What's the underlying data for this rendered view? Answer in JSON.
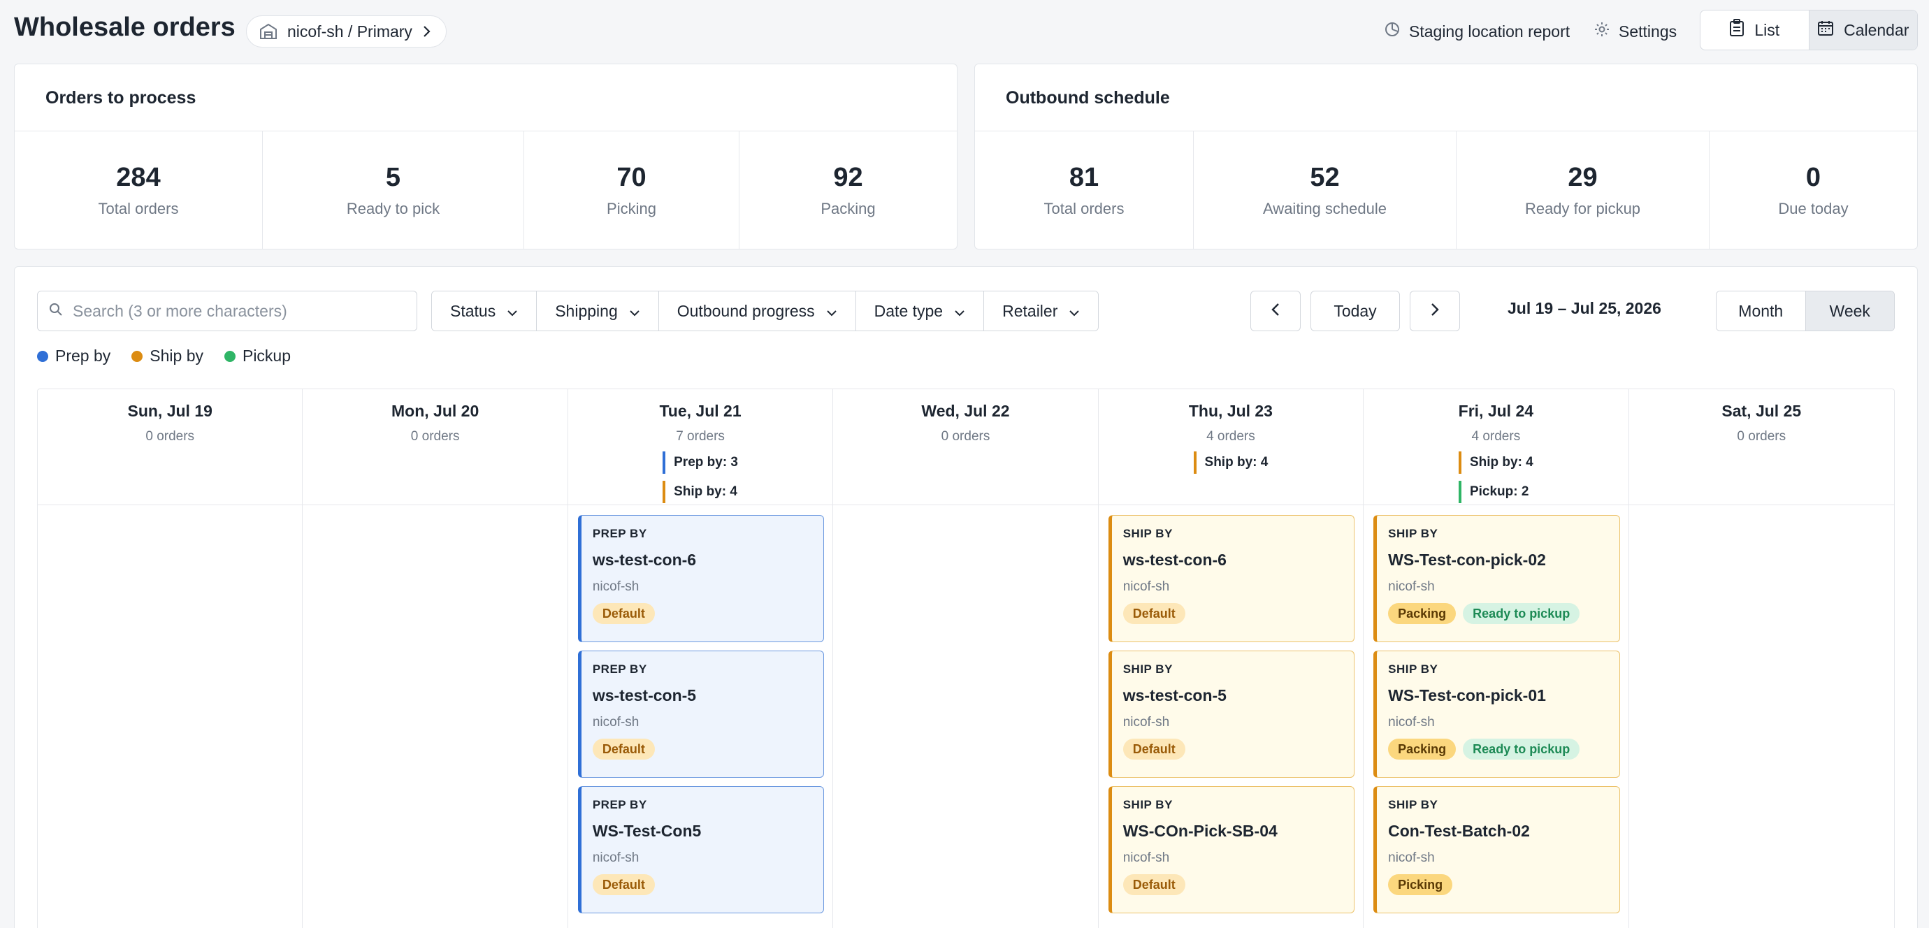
{
  "header": {
    "title": "Wholesale orders",
    "breadcrumb": "nicof-sh / Primary",
    "staging_report": "Staging location report",
    "settings": "Settings",
    "view_list": "List",
    "view_calendar": "Calendar",
    "active_view": "Calendar"
  },
  "orders_to_process": {
    "title": "Orders to process",
    "stats": [
      {
        "value": "284",
        "label": "Total orders"
      },
      {
        "value": "5",
        "label": "Ready to pick"
      },
      {
        "value": "70",
        "label": "Picking"
      },
      {
        "value": "92",
        "label": "Packing"
      }
    ]
  },
  "outbound_schedule": {
    "title": "Outbound schedule",
    "stats": [
      {
        "value": "81",
        "label": "Total orders"
      },
      {
        "value": "52",
        "label": "Awaiting schedule"
      },
      {
        "value": "29",
        "label": "Ready for pickup"
      },
      {
        "value": "0",
        "label": "Due today"
      }
    ]
  },
  "toolbar": {
    "search_placeholder": "Search (3 or more characters)",
    "filters": [
      "Status",
      "Shipping",
      "Outbound progress",
      "Date type",
      "Retailer"
    ],
    "today": "Today",
    "date_range": "Jul 19 – Jul 25, 2026",
    "range_month": "Month",
    "range_week": "Week",
    "active_range": "Week"
  },
  "legend": [
    {
      "label": "Prep by",
      "color": "#2f6fd6"
    },
    {
      "label": "Ship by",
      "color": "#dc8c12"
    },
    {
      "label": "Pickup",
      "color": "#2fb566"
    }
  ],
  "days": [
    {
      "name": "Sun, Jul 19",
      "count": "0 orders",
      "summary": [],
      "cards": []
    },
    {
      "name": "Mon, Jul 20",
      "count": "0 orders",
      "summary": [],
      "cards": []
    },
    {
      "name": "Tue, Jul 21",
      "count": "7 orders",
      "summary": [
        {
          "text": "Prep by: 3",
          "kind": "prep"
        },
        {
          "text": "Ship by: 4",
          "kind": "ship"
        }
      ],
      "cards": [
        {
          "kind": "prep",
          "kind_label": "PREP BY",
          "name": "ws-test-con-6",
          "sub": "nicof-sh",
          "badges": [
            {
              "text": "Default",
              "type": "default"
            }
          ]
        },
        {
          "kind": "prep",
          "kind_label": "PREP BY",
          "name": "ws-test-con-5",
          "sub": "nicof-sh",
          "badges": [
            {
              "text": "Default",
              "type": "default"
            }
          ]
        },
        {
          "kind": "prep",
          "kind_label": "PREP BY",
          "name": "WS-Test-Con5",
          "sub": "nicof-sh",
          "badges": [
            {
              "text": "Default",
              "type": "default"
            }
          ]
        }
      ]
    },
    {
      "name": "Wed, Jul 22",
      "count": "0 orders",
      "summary": [],
      "cards": []
    },
    {
      "name": "Thu, Jul 23",
      "count": "4 orders",
      "summary": [
        {
          "text": "Ship by: 4",
          "kind": "ship"
        }
      ],
      "cards": [
        {
          "kind": "ship",
          "kind_label": "SHIP BY",
          "name": "ws-test-con-6",
          "sub": "nicof-sh",
          "badges": [
            {
              "text": "Default",
              "type": "default"
            }
          ]
        },
        {
          "kind": "ship",
          "kind_label": "SHIP BY",
          "name": "ws-test-con-5",
          "sub": "nicof-sh",
          "badges": [
            {
              "text": "Default",
              "type": "default"
            }
          ]
        },
        {
          "kind": "ship",
          "kind_label": "SHIP BY",
          "name": "WS-COn-Pick-SB-04",
          "sub": "nicof-sh",
          "badges": [
            {
              "text": "Default",
              "type": "default"
            }
          ]
        }
      ]
    },
    {
      "name": "Fri, Jul 24",
      "count": "4 orders",
      "summary": [
        {
          "text": "Ship by: 4",
          "kind": "ship"
        },
        {
          "text": "Pickup: 2",
          "kind": "pickup"
        }
      ],
      "cards": [
        {
          "kind": "ship",
          "kind_label": "SHIP BY",
          "name": "WS-Test-con-pick-02",
          "sub": "nicof-sh",
          "badges": [
            {
              "text": "Packing",
              "type": "packing"
            },
            {
              "text": "Ready to pickup",
              "type": "ready"
            }
          ]
        },
        {
          "kind": "ship",
          "kind_label": "SHIP BY",
          "name": "WS-Test-con-pick-01",
          "sub": "nicof-sh",
          "badges": [
            {
              "text": "Packing",
              "type": "packing"
            },
            {
              "text": "Ready to pickup",
              "type": "ready"
            }
          ]
        },
        {
          "kind": "ship",
          "kind_label": "SHIP BY",
          "name": "Con-Test-Batch-02",
          "sub": "nicof-sh",
          "badges": [
            {
              "text": "Picking",
              "type": "picking"
            }
          ]
        }
      ]
    },
    {
      "name": "Sat, Jul 25",
      "count": "0 orders",
      "summary": [],
      "cards": []
    }
  ]
}
